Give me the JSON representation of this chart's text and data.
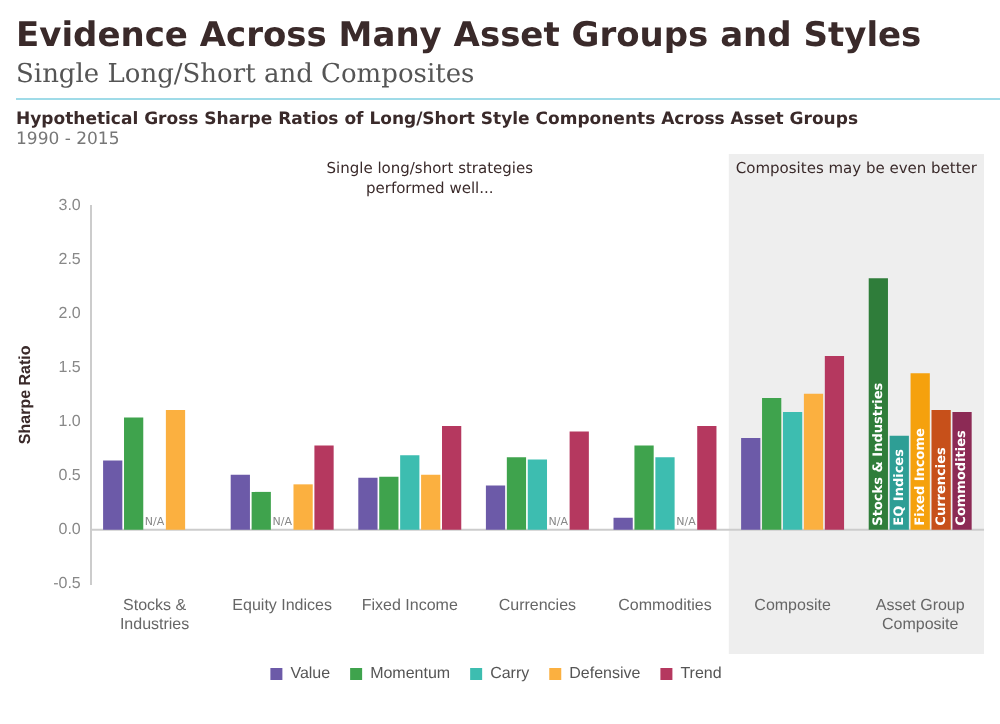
{
  "chart_data": {
    "type": "bar",
    "title": "Evidence Across Many Asset Groups and Styles",
    "subtitle": "Single Long/Short and Composites",
    "ylabel": "Sharpe Ratio",
    "categories": [
      "Stocks & Industries",
      "Equity Indices",
      "Fixed Income",
      "Currencies",
      "Commodities",
      "Composite",
      "Asset Group Composite"
    ],
    "series": [
      {
        "name": "Value",
        "color": "#6c5aa8",
        "values": [
          0.64,
          0.51,
          0.48,
          0.41,
          0.11,
          0.85,
          null
        ]
      },
      {
        "name": "Momentum",
        "color": "#3fa34d",
        "values": [
          1.04,
          0.35,
          0.49,
          0.67,
          0.78,
          1.22,
          null
        ]
      },
      {
        "name": "Carry",
        "color": "#3dbdb0",
        "values": [
          null,
          null,
          0.69,
          0.65,
          0.67,
          1.09,
          null
        ]
      },
      {
        "name": "Defensive",
        "color": "#fbb040",
        "values": [
          1.11,
          0.42,
          0.51,
          null,
          null,
          1.26,
          null
        ]
      },
      {
        "name": "Trend",
        "color": "#b5385f",
        "values": [
          null,
          0.78,
          0.96,
          0.91,
          0.96,
          1.61,
          null
        ]
      },
      {
        "name": "Stocks & Industries",
        "color": "#2f7d3a",
        "values": [
          null,
          null,
          null,
          null,
          null,
          null,
          2.33
        ]
      },
      {
        "name": "EQ Indices",
        "color": "#2e9e95",
        "values": [
          null,
          null,
          null,
          null,
          null,
          null,
          0.87
        ]
      },
      {
        "name": "Fixed Income",
        "color": "#f5a10d",
        "values": [
          null,
          null,
          null,
          null,
          null,
          null,
          1.45
        ]
      },
      {
        "name": "Currencies",
        "color": "#c7501a",
        "values": [
          null,
          null,
          null,
          null,
          null,
          null,
          1.11
        ]
      },
      {
        "name": "Commodities",
        "color": "#8c2a55",
        "values": [
          null,
          null,
          null,
          null,
          null,
          null,
          1.09
        ]
      }
    ],
    "ylim": [
      -0.5,
      3.0
    ],
    "yticks": [
      {
        "value": -0.5,
        "label": "-0.5"
      },
      {
        "value": 0,
        "label": "0.0"
      },
      {
        "value": 0.5,
        "label": "0.5"
      },
      {
        "value": 1,
        "label": "1.0"
      },
      {
        "value": 1.5,
        "label": "1.5"
      },
      {
        "value": 2,
        "label": "2.0"
      },
      {
        "value": 2.5,
        "label": "2.5"
      },
      {
        "value": 3,
        "label": "3.0"
      }
    ],
    "ref_lines": [
      {
        "axis": "y",
        "value": 0,
        "color": "#cccccc"
      }
    ],
    "bands": [
      {
        "axis": "x",
        "from": "Composite",
        "to": "Asset Group Composite",
        "label": "Composites may be even better",
        "color": "#eeeeee"
      }
    ],
    "annotations": [
      "Hypothetical Gross Sharpe Ratios of Long/Short Style Components Across Asset Groups",
      "1990 - 2015",
      "Single long/short strategies performed well...",
      {
        "text": "N/A",
        "x": "Stocks & Industries",
        "y": 0
      },
      {
        "text": "N/A",
        "x": "Equity Indices",
        "y": 0
      },
      {
        "text": "N/A",
        "x": "Currencies",
        "y": 0
      },
      {
        "text": "N/A",
        "x": "Commodities",
        "y": 0
      }
    ],
    "legend": "bottom",
    "grid": false
  }
}
